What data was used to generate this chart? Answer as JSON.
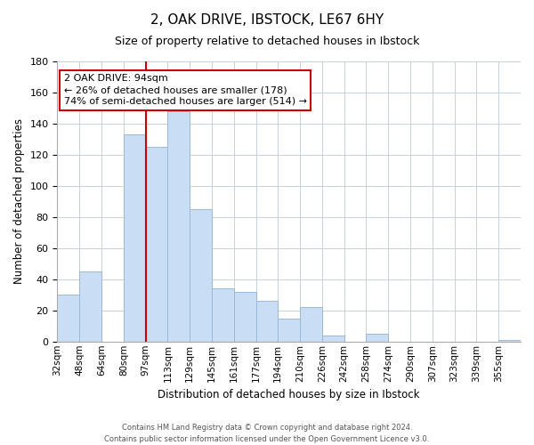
{
  "title": "2, OAK DRIVE, IBSTOCK, LE67 6HY",
  "subtitle": "Size of property relative to detached houses in Ibstock",
  "xlabel": "Distribution of detached houses by size in Ibstock",
  "ylabel": "Number of detached properties",
  "bin_labels": [
    "32sqm",
    "48sqm",
    "64sqm",
    "80sqm",
    "97sqm",
    "113sqm",
    "129sqm",
    "145sqm",
    "161sqm",
    "177sqm",
    "194sqm",
    "210sqm",
    "226sqm",
    "242sqm",
    "258sqm",
    "274sqm",
    "290sqm",
    "307sqm",
    "323sqm",
    "339sqm",
    "355sqm"
  ],
  "values": [
    30,
    45,
    0,
    133,
    125,
    148,
    85,
    34,
    32,
    26,
    15,
    22,
    4,
    0,
    5,
    0,
    0,
    0,
    0,
    0,
    1
  ],
  "bar_color": "#c9ddf5",
  "bar_edge_color": "#9ab8d8",
  "vline_idx": 4,
  "vline_color": "#cc0000",
  "annotation_text_line1": "2 OAK DRIVE: 94sqm",
  "annotation_text_line2": "← 26% of detached houses are smaller (178)",
  "annotation_text_line3": "74% of semi-detached houses are larger (514) →",
  "ylim": [
    0,
    180
  ],
  "yticks": [
    0,
    20,
    40,
    60,
    80,
    100,
    120,
    140,
    160,
    180
  ],
  "footer_line1": "Contains HM Land Registry data © Crown copyright and database right 2024.",
  "footer_line2": "Contains public sector information licensed under the Open Government Licence v3.0.",
  "bg_color": "#ffffff",
  "grid_color": "#c8d0dc",
  "title_fontsize": 11,
  "subtitle_fontsize": 9
}
